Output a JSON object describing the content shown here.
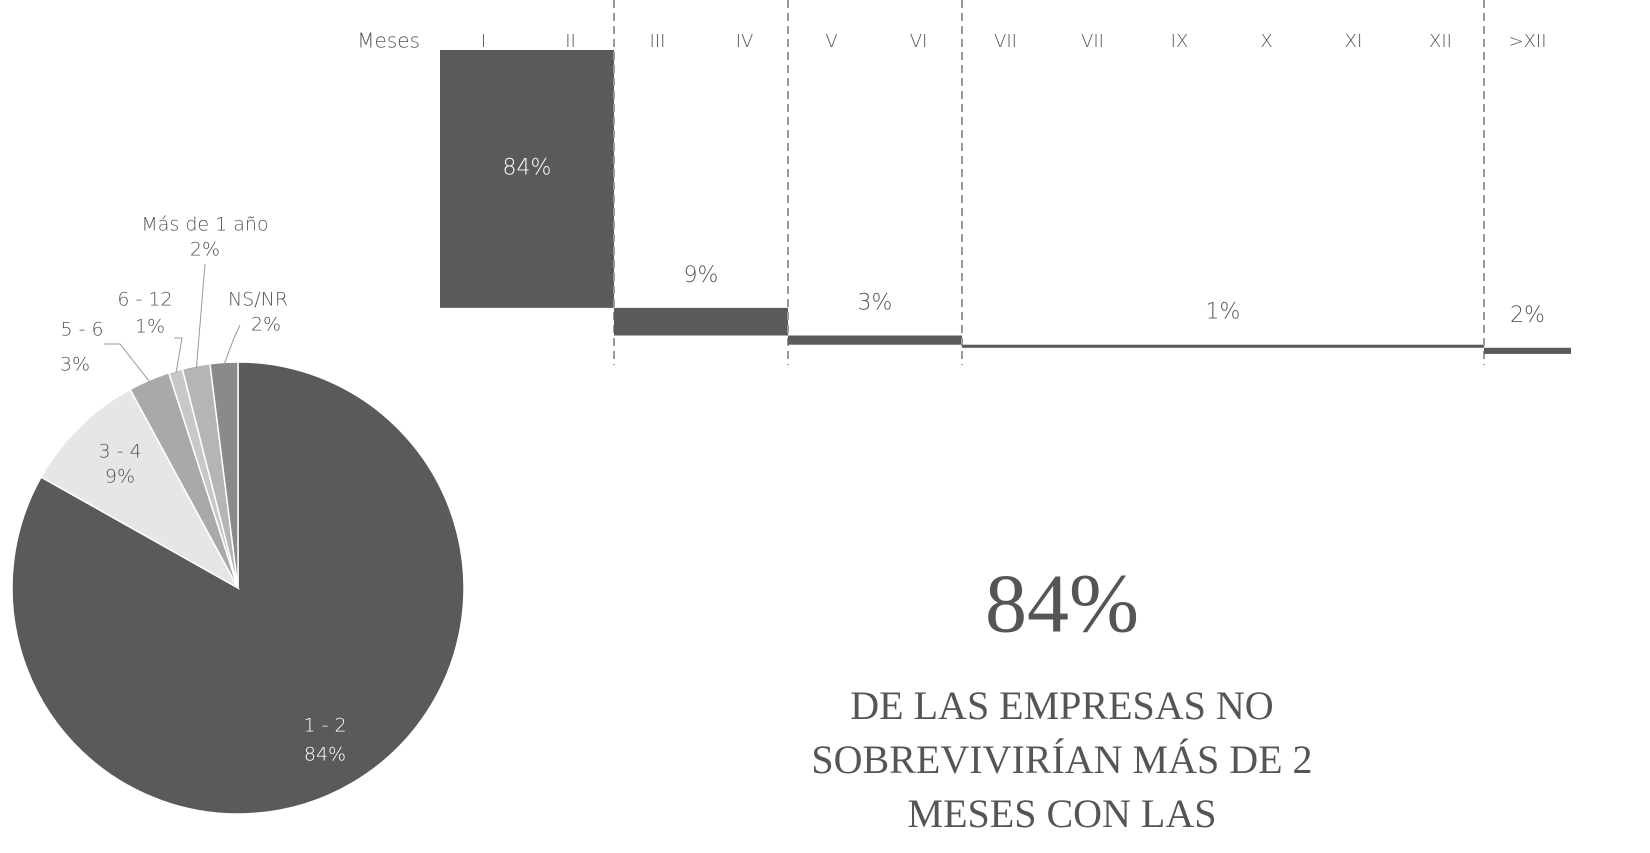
{
  "chart_data": [
    {
      "type": "pie",
      "categories": [
        "1 - 2",
        "3 - 4",
        "5 - 6",
        "6 - 12",
        "Más de 1 año",
        "NS/NR"
      ],
      "values": [
        84,
        9,
        3,
        1,
        2,
        2
      ],
      "value_labels": [
        "84%",
        "9%",
        "3%",
        "1%",
        "2%",
        "2%"
      ],
      "colors": [
        "#5a5a5a",
        "#e6e6e6",
        "#a9a9a9",
        "#c8c8c8",
        "#b5b5b5",
        "#8a8a8a"
      ]
    },
    {
      "type": "waterfall",
      "axis_label": "Meses",
      "color": "#5a5a5a",
      "groups": [
        {
          "months": [
            "I",
            "II"
          ],
          "value": 84,
          "value_label": "84%"
        },
        {
          "months": [
            "III",
            "IV"
          ],
          "value": 9,
          "value_label": "9%"
        },
        {
          "months": [
            "V",
            "VI"
          ],
          "value": 3,
          "value_label": "3%"
        },
        {
          "months": [
            "VII",
            "VII",
            "IX",
            "X",
            "XI",
            "XII"
          ],
          "value": 1,
          "value_label": "1%"
        },
        {
          "months": [
            ">XII"
          ],
          "value": 2,
          "value_label": "2%"
        }
      ]
    }
  ],
  "headline": {
    "value": "84%",
    "lines": [
      "DE LAS EMPRESAS NO",
      "SOBREVIVIRÍAN MÁS DE 2",
      "MESES CON LAS"
    ]
  }
}
